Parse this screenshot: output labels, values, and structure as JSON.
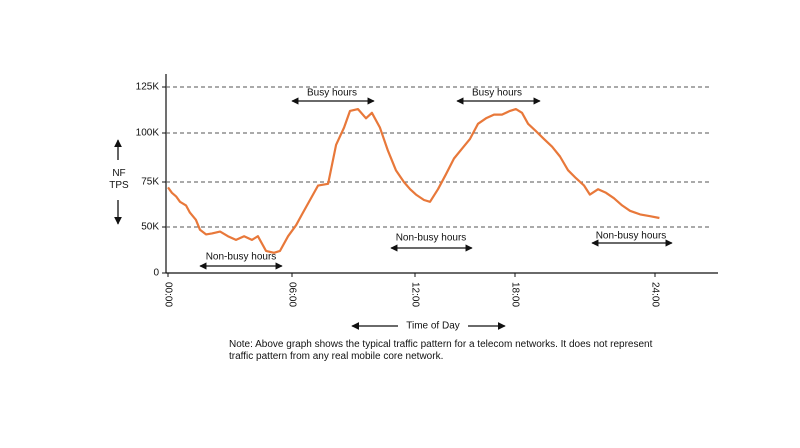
{
  "chart_data": {
    "type": "line",
    "x_label": "Time of Day",
    "y_label": "NF TPS",
    "note": "Note: Above graph shows the typical traffic pattern for a telecom networks. It does not represent traffic pattern from any real mobile core network.",
    "x": [
      0,
      0.19,
      0.39,
      0.58,
      0.87,
      1.06,
      1.35,
      1.55,
      1.84,
      2.13,
      2.52,
      2.9,
      3.29,
      3.68,
      4.06,
      4.35,
      4.74,
      5.13,
      5.42,
      5.81,
      6.2,
      6.49,
      6.88,
      7.27,
      7.76,
      8.15,
      8.54,
      8.83,
      9.22,
      9.61,
      9.9,
      10.29,
      10.68,
      11.07,
      11.46,
      11.76,
      12.06,
      12.54,
      12.9,
      13.38,
      13.86,
      14.34,
      14.82,
      15.3,
      15.78,
      16.26,
      16.74,
      17.22,
      17.7,
      18.04,
      18.3,
      18.56,
      18.9,
      19.24,
      19.59,
      19.93,
      20.27,
      20.61,
      20.96,
      21.21,
      21.56,
      21.9,
      22.24,
      22.59,
      22.93,
      23.36,
      23.79,
      24.21
    ],
    "series": [
      {
        "color": "#e8783a",
        "values": [
          72000,
          69000,
          67000,
          64000,
          62000,
          58000,
          54000,
          47000,
          42000,
          43000,
          45000,
          40000,
          36000,
          40000,
          36000,
          40000,
          24000,
          22000,
          24000,
          40000,
          51000,
          57000,
          65000,
          73000,
          74000,
          94000,
          103000,
          112000,
          113000,
          108000,
          111000,
          103000,
          91000,
          81000,
          75000,
          71000,
          68000,
          65000,
          64000,
          71000,
          79000,
          87000,
          92000,
          97000,
          105000,
          108000,
          110000,
          110000,
          112000,
          113000,
          111000,
          105000,
          101000,
          97000,
          93000,
          88000,
          81000,
          77000,
          73000,
          68000,
          71000,
          69000,
          66000,
          62000,
          59000,
          57000,
          56000,
          55000
        ]
      }
    ],
    "xlim": [
      0,
      27
    ],
    "xticks": [
      {
        "value": 0,
        "label": "00:00"
      },
      {
        "value": 6,
        "label": "06:00"
      },
      {
        "value": 12,
        "label": "12:00"
      },
      {
        "value": 18,
        "label": "18:00"
      },
      {
        "value": 24,
        "label": "24:00"
      }
    ],
    "ylim": [
      0,
      135000
    ],
    "yticks": [
      0,
      {
        "value": 50000,
        "label": "50K"
      },
      {
        "value": 75000,
        "label": "75K"
      },
      {
        "value": 100000,
        "label": "100K"
      },
      {
        "value": 125000,
        "label": "125K"
      }
    ],
    "grid": true,
    "annotations": [
      "Busy hours",
      "Busy hours",
      "Non-busy hours",
      "Non-busy hours",
      "Non-busy hours"
    ]
  }
}
